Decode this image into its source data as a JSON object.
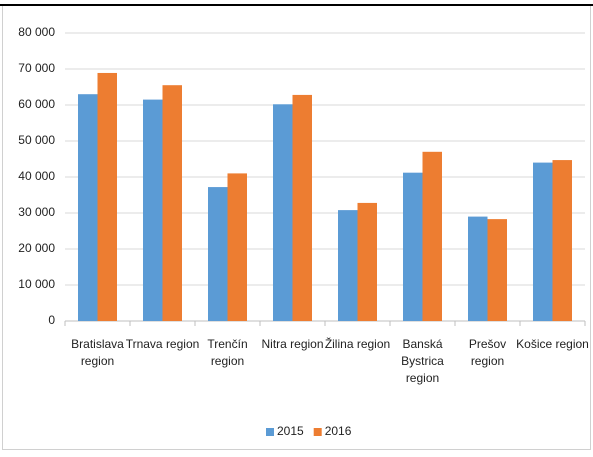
{
  "chart_data": {
    "type": "bar",
    "categories": [
      "Bratislava region",
      "Trnava region",
      "Trenčín region",
      "Nitra region",
      "Žilina region",
      "Banská Bystrica region",
      "Prešov region",
      "Košice region"
    ],
    "series": [
      {
        "name": "2015",
        "color": "#5b9bd5",
        "values": [
          63000,
          61500,
          37200,
          60200,
          30800,
          41200,
          29000,
          44000
        ]
      },
      {
        "name": "2016",
        "color": "#ed7d31",
        "values": [
          68900,
          65500,
          41000,
          62800,
          32800,
          47000,
          28300,
          44700
        ]
      }
    ],
    "ylim": [
      0,
      80000
    ],
    "yticks": [
      0,
      {
        "value": 10000,
        "label": "10 000"
      },
      {
        "value": 20000,
        "label": "20 000"
      },
      {
        "value": 30000,
        "label": "30 000"
      },
      {
        "value": 40000,
        "label": "40 000"
      },
      {
        "value": 50000,
        "label": "50 000"
      },
      {
        "value": 60000,
        "label": "60 000"
      },
      {
        "value": 70000,
        "label": "70 000"
      },
      {
        "value": 80000,
        "label": "80 000"
      }
    ],
    "grid": true,
    "legend": "bottom"
  }
}
